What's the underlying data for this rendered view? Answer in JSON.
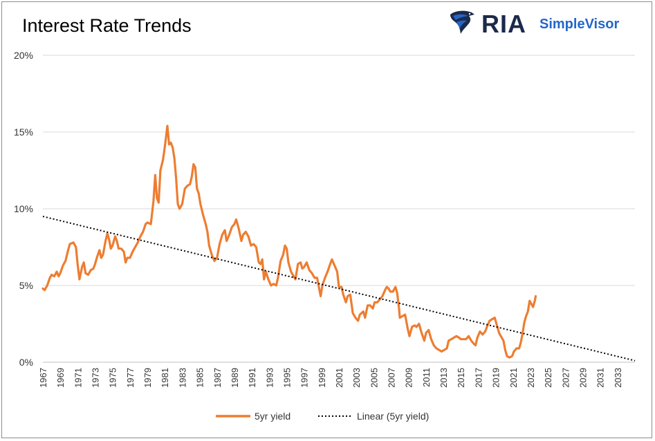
{
  "colors": {
    "series": "#ED7D31",
    "trend": "#000000",
    "grid": "#d9d9d9",
    "logo_dark": "#1c2a4a",
    "logo_blue": "#2366c9"
  },
  "logo": {
    "mark": "RIA",
    "product": "SimpleVisor",
    "icon": "eagle-icon"
  },
  "chart_data": {
    "type": "line",
    "title": "Interest Rate Trends",
    "xlabel": "",
    "ylabel": "",
    "xlim": [
      1967,
      2035
    ],
    "ylim": [
      0,
      20
    ],
    "y_ticks": [
      "0%",
      "5%",
      "10%",
      "15%",
      "20%"
    ],
    "x_ticks": [
      "1967",
      "1969",
      "1971",
      "1973",
      "1975",
      "1977",
      "1979",
      "1981",
      "1983",
      "1985",
      "1987",
      "1989",
      "1991",
      "1993",
      "1995",
      "1997",
      "1999",
      "2001",
      "2003",
      "2005",
      "2007",
      "2009",
      "2011",
      "2013",
      "2015",
      "2017",
      "2019",
      "2021",
      "2023",
      "2025",
      "2027",
      "2029",
      "2031",
      "2033"
    ],
    "grid": true,
    "legend_position": "bottom",
    "series": [
      {
        "name": "5yr yield",
        "style": "solid",
        "points": [
          [
            1967.0,
            4.8
          ],
          [
            1967.2,
            4.7
          ],
          [
            1967.5,
            5.0
          ],
          [
            1967.8,
            5.5
          ],
          [
            1968.0,
            5.7
          ],
          [
            1968.3,
            5.6
          ],
          [
            1968.6,
            5.9
          ],
          [
            1968.8,
            5.6
          ],
          [
            1969.0,
            5.8
          ],
          [
            1969.3,
            6.3
          ],
          [
            1969.6,
            6.6
          ],
          [
            1969.9,
            7.3
          ],
          [
            1970.1,
            7.7
          ],
          [
            1970.5,
            7.8
          ],
          [
            1970.8,
            7.5
          ],
          [
            1971.0,
            6.3
          ],
          [
            1971.2,
            5.4
          ],
          [
            1971.5,
            6.2
          ],
          [
            1971.7,
            6.5
          ],
          [
            1971.9,
            5.8
          ],
          [
            1972.2,
            5.7
          ],
          [
            1972.5,
            6.0
          ],
          [
            1972.8,
            6.1
          ],
          [
            1973.0,
            6.4
          ],
          [
            1973.2,
            6.8
          ],
          [
            1973.5,
            7.3
          ],
          [
            1973.7,
            6.8
          ],
          [
            1973.9,
            7.0
          ],
          [
            1974.2,
            7.9
          ],
          [
            1974.4,
            8.4
          ],
          [
            1974.6,
            8.0
          ],
          [
            1974.8,
            7.4
          ],
          [
            1975.0,
            7.6
          ],
          [
            1975.3,
            8.2
          ],
          [
            1975.5,
            7.9
          ],
          [
            1975.7,
            7.4
          ],
          [
            1976.0,
            7.4
          ],
          [
            1976.3,
            7.2
          ],
          [
            1976.5,
            6.5
          ],
          [
            1976.7,
            6.8
          ],
          [
            1977.0,
            6.8
          ],
          [
            1977.3,
            7.2
          ],
          [
            1977.6,
            7.5
          ],
          [
            1977.9,
            7.8
          ],
          [
            1978.2,
            8.2
          ],
          [
            1978.5,
            8.5
          ],
          [
            1978.8,
            9.0
          ],
          [
            1979.0,
            9.1
          ],
          [
            1979.4,
            9.0
          ],
          [
            1979.7,
            10.5
          ],
          [
            1979.9,
            12.2
          ],
          [
            1980.1,
            10.7
          ],
          [
            1980.3,
            10.4
          ],
          [
            1980.5,
            12.5
          ],
          [
            1980.8,
            13.2
          ],
          [
            1981.0,
            14.0
          ],
          [
            1981.3,
            15.4
          ],
          [
            1981.5,
            14.2
          ],
          [
            1981.7,
            14.3
          ],
          [
            1981.9,
            14.0
          ],
          [
            1982.1,
            13.3
          ],
          [
            1982.3,
            12.0
          ],
          [
            1982.5,
            10.3
          ],
          [
            1982.7,
            10.0
          ],
          [
            1983.0,
            10.3
          ],
          [
            1983.3,
            11.3
          ],
          [
            1983.6,
            11.5
          ],
          [
            1983.9,
            11.6
          ],
          [
            1984.1,
            12.1
          ],
          [
            1984.3,
            12.9
          ],
          [
            1984.5,
            12.7
          ],
          [
            1984.7,
            11.3
          ],
          [
            1984.9,
            11.0
          ],
          [
            1985.1,
            10.3
          ],
          [
            1985.4,
            9.6
          ],
          [
            1985.7,
            9.0
          ],
          [
            1985.9,
            8.5
          ],
          [
            1986.1,
            7.6
          ],
          [
            1986.4,
            7.0
          ],
          [
            1986.7,
            6.6
          ],
          [
            1987.0,
            6.8
          ],
          [
            1987.3,
            7.7
          ],
          [
            1987.6,
            8.3
          ],
          [
            1987.9,
            8.6
          ],
          [
            1988.1,
            7.9
          ],
          [
            1988.4,
            8.3
          ],
          [
            1988.7,
            8.8
          ],
          [
            1989.0,
            9.0
          ],
          [
            1989.2,
            9.3
          ],
          [
            1989.5,
            8.7
          ],
          [
            1989.8,
            7.9
          ],
          [
            1990.0,
            8.3
          ],
          [
            1990.3,
            8.5
          ],
          [
            1990.6,
            8.2
          ],
          [
            1990.9,
            7.6
          ],
          [
            1991.2,
            7.7
          ],
          [
            1991.5,
            7.5
          ],
          [
            1991.8,
            6.5
          ],
          [
            1992.0,
            6.4
          ],
          [
            1992.2,
            6.7
          ],
          [
            1992.4,
            5.4
          ],
          [
            1992.6,
            5.9
          ],
          [
            1992.9,
            5.4
          ],
          [
            1993.2,
            5.0
          ],
          [
            1993.5,
            5.1
          ],
          [
            1993.8,
            5.0
          ],
          [
            1994.0,
            5.5
          ],
          [
            1994.3,
            6.6
          ],
          [
            1994.6,
            7.0
          ],
          [
            1994.8,
            7.6
          ],
          [
            1995.0,
            7.4
          ],
          [
            1995.2,
            6.5
          ],
          [
            1995.5,
            5.9
          ],
          [
            1995.8,
            5.6
          ],
          [
            1996.0,
            5.4
          ],
          [
            1996.3,
            6.4
          ],
          [
            1996.6,
            6.5
          ],
          [
            1996.8,
            6.1
          ],
          [
            1997.0,
            6.2
          ],
          [
            1997.3,
            6.5
          ],
          [
            1997.6,
            6.0
          ],
          [
            1997.9,
            5.8
          ],
          [
            1998.2,
            5.5
          ],
          [
            1998.5,
            5.5
          ],
          [
            1998.7,
            4.9
          ],
          [
            1998.9,
            4.3
          ],
          [
            1999.1,
            5.0
          ],
          [
            1999.4,
            5.5
          ],
          [
            1999.7,
            5.9
          ],
          [
            2000.0,
            6.4
          ],
          [
            2000.2,
            6.7
          ],
          [
            2000.5,
            6.3
          ],
          [
            2000.8,
            5.9
          ],
          [
            2001.0,
            4.9
          ],
          [
            2001.3,
            4.9
          ],
          [
            2001.5,
            4.4
          ],
          [
            2001.8,
            3.9
          ],
          [
            2002.0,
            4.3
          ],
          [
            2002.3,
            4.4
          ],
          [
            2002.6,
            3.2
          ],
          [
            2002.9,
            2.9
          ],
          [
            2003.2,
            2.7
          ],
          [
            2003.4,
            3.1
          ],
          [
            2003.6,
            3.2
          ],
          [
            2003.8,
            3.3
          ],
          [
            2004.0,
            2.9
          ],
          [
            2004.3,
            3.7
          ],
          [
            2004.6,
            3.7
          ],
          [
            2004.9,
            3.5
          ],
          [
            2005.1,
            3.9
          ],
          [
            2005.4,
            3.9
          ],
          [
            2005.7,
            4.1
          ],
          [
            2006.0,
            4.3
          ],
          [
            2006.3,
            4.7
          ],
          [
            2006.5,
            4.9
          ],
          [
            2006.7,
            4.8
          ],
          [
            2006.9,
            4.6
          ],
          [
            2007.2,
            4.6
          ],
          [
            2007.5,
            4.9
          ],
          [
            2007.7,
            4.5
          ],
          [
            2007.9,
            3.5
          ],
          [
            2008.0,
            2.9
          ],
          [
            2008.3,
            3.0
          ],
          [
            2008.6,
            3.1
          ],
          [
            2008.9,
            2.2
          ],
          [
            2009.1,
            1.7
          ],
          [
            2009.4,
            2.3
          ],
          [
            2009.7,
            2.4
          ],
          [
            2009.9,
            2.3
          ],
          [
            2010.2,
            2.5
          ],
          [
            2010.5,
            1.9
          ],
          [
            2010.8,
            1.4
          ],
          [
            2011.0,
            1.9
          ],
          [
            2011.3,
            2.1
          ],
          [
            2011.6,
            1.5
          ],
          [
            2011.9,
            1.1
          ],
          [
            2012.2,
            0.9
          ],
          [
            2012.5,
            0.8
          ],
          [
            2012.8,
            0.7
          ],
          [
            2013.1,
            0.8
          ],
          [
            2013.4,
            0.9
          ],
          [
            2013.6,
            1.4
          ],
          [
            2013.9,
            1.5
          ],
          [
            2014.2,
            1.6
          ],
          [
            2014.5,
            1.7
          ],
          [
            2014.8,
            1.6
          ],
          [
            2015.0,
            1.5
          ],
          [
            2015.3,
            1.5
          ],
          [
            2015.6,
            1.5
          ],
          [
            2015.9,
            1.7
          ],
          [
            2016.2,
            1.4
          ],
          [
            2016.5,
            1.2
          ],
          [
            2016.7,
            1.1
          ],
          [
            2016.9,
            1.6
          ],
          [
            2017.2,
            2.0
          ],
          [
            2017.5,
            1.8
          ],
          [
            2017.8,
            2.0
          ],
          [
            2018.0,
            2.3
          ],
          [
            2018.3,
            2.7
          ],
          [
            2018.6,
            2.8
          ],
          [
            2018.9,
            2.9
          ],
          [
            2019.1,
            2.5
          ],
          [
            2019.4,
            1.9
          ],
          [
            2019.7,
            1.6
          ],
          [
            2019.9,
            1.4
          ],
          [
            2020.1,
            0.8
          ],
          [
            2020.3,
            0.4
          ],
          [
            2020.6,
            0.3
          ],
          [
            2020.9,
            0.4
          ],
          [
            2021.1,
            0.7
          ],
          [
            2021.4,
            0.9
          ],
          [
            2021.7,
            0.9
          ],
          [
            2021.9,
            1.3
          ],
          [
            2022.1,
            1.9
          ],
          [
            2022.3,
            2.6
          ],
          [
            2022.5,
            3.0
          ],
          [
            2022.7,
            3.3
          ],
          [
            2022.9,
            4.0
          ],
          [
            2023.1,
            3.8
          ],
          [
            2023.3,
            3.6
          ],
          [
            2023.5,
            4.0
          ],
          [
            2023.6,
            4.3
          ]
        ]
      },
      {
        "name": "Linear (5yr yield)",
        "style": "dotted",
        "points": [
          [
            1967,
            9.5
          ],
          [
            2035,
            0.1
          ]
        ]
      }
    ]
  }
}
